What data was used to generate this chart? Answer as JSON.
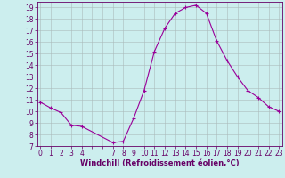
{
  "x": [
    0,
    1,
    2,
    3,
    4,
    7,
    8,
    9,
    10,
    11,
    12,
    13,
    14,
    15,
    16,
    17,
    18,
    19,
    20,
    21,
    22,
    23
  ],
  "y": [
    10.8,
    10.3,
    9.9,
    8.8,
    8.7,
    7.3,
    7.4,
    9.4,
    11.8,
    15.2,
    17.2,
    18.5,
    19.0,
    19.2,
    18.5,
    16.1,
    14.4,
    13.0,
    11.8,
    11.2,
    10.4,
    10.0
  ],
  "line_color": "#990099",
  "marker": "+",
  "marker_size": 3,
  "bg_color": "#cceeee",
  "grid_color": "#aabbbb",
  "xlabel": "Windchill (Refroidissement éolien,°C)",
  "ylim": [
    7,
    19.5
  ],
  "yticks": [
    7,
    8,
    9,
    10,
    11,
    12,
    13,
    14,
    15,
    16,
    17,
    18,
    19
  ],
  "xticks_all": [
    0,
    1,
    2,
    3,
    4,
    5,
    6,
    7,
    8,
    9,
    10,
    11,
    12,
    13,
    14,
    15,
    16,
    17,
    18,
    19,
    20,
    21,
    22,
    23
  ],
  "xtick_labels": [
    "0",
    "1",
    "2",
    "3",
    "4",
    "",
    "",
    "7",
    "8",
    "9",
    "10",
    "11",
    "12",
    "13",
    "14",
    "15",
    "16",
    "17",
    "18",
    "19",
    "20",
    "21",
    "22",
    "23"
  ],
  "xlim": [
    -0.3,
    23.3
  ],
  "label_color": "#660066",
  "label_fontsize": 6,
  "tick_fontsize": 5.5
}
